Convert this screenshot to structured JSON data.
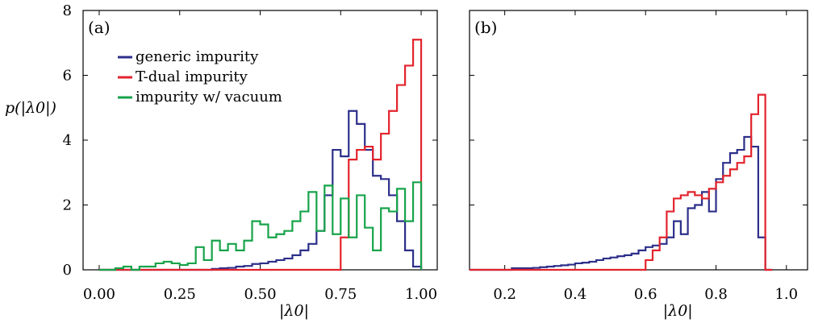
{
  "chart_data": [
    {
      "type": "histogram-step",
      "panel_label": "(a)",
      "xlabel": "|λ0|",
      "ylabel": "p(|λ0|)",
      "xlim": [
        -0.05,
        1.05
      ],
      "ylim": [
        0,
        8
      ],
      "xticks": [
        0.0,
        0.25,
        0.5,
        0.75,
        1.0
      ],
      "xtick_labels": [
        "0.00",
        "0.25",
        "0.50",
        "0.75",
        "1.00"
      ],
      "yticks": [
        0,
        2,
        4,
        6,
        8
      ],
      "ytick_labels": [
        "0",
        "2",
        "4",
        "6",
        "8"
      ],
      "legend_position": "upper-left",
      "series": [
        {
          "name": "generic impurity",
          "color": "#2c2f8a",
          "bin_start": 0.0,
          "bin_width": 0.025,
          "values": [
            0,
            0,
            0,
            0,
            0,
            0,
            0,
            0,
            0,
            0,
            0,
            0,
            0,
            0,
            0.03,
            0.05,
            0.06,
            0.1,
            0.12,
            0.18,
            0.2,
            0.25,
            0.3,
            0.35,
            0.45,
            0.6,
            0.8,
            1.2,
            2.3,
            3.7,
            3.5,
            4.9,
            4.5,
            3.7,
            2.9,
            2.8,
            2.3,
            1.5,
            0.6,
            0.1
          ]
        },
        {
          "name": "T-dual impurity",
          "color": "#e3232c",
          "bin_start": 0.0,
          "bin_width": 0.025,
          "values": [
            0,
            0,
            0,
            0,
            0,
            0,
            0,
            0,
            0,
            0,
            0,
            0,
            0,
            0,
            0,
            0,
            0,
            0,
            0,
            0,
            0,
            0,
            0,
            0,
            0,
            0,
            0,
            0,
            0,
            0,
            1.0,
            3.4,
            3.7,
            3.8,
            3.4,
            4.2,
            4.9,
            5.7,
            6.3,
            7.1
          ]
        },
        {
          "name": "impurity w/ vacuum",
          "color": "#17a34a",
          "bin_start": 0.0,
          "bin_width": 0.025,
          "values": [
            0,
            0,
            0.05,
            0.1,
            0,
            0.1,
            0.1,
            0.2,
            0.25,
            0.2,
            0.15,
            0.2,
            0.7,
            0.3,
            0.9,
            0.6,
            0.8,
            0.6,
            0.9,
            1.5,
            1.4,
            1.0,
            1.1,
            1.2,
            1.5,
            1.8,
            2.4,
            1.2,
            2.6,
            1.1,
            2.2,
            1.0,
            2.3,
            1.3,
            0.6,
            1.9,
            1.8,
            2.5,
            1.5,
            2.7
          ]
        }
      ]
    },
    {
      "type": "histogram-step",
      "panel_label": "(b)",
      "xlabel": "|λ0|",
      "xlim": [
        0.1,
        1.06
      ],
      "ylim": [
        0,
        8
      ],
      "xticks": [
        0.2,
        0.4,
        0.6,
        0.8,
        1.0
      ],
      "xtick_labels": [
        "0.2",
        "0.4",
        "0.6",
        "0.8",
        "1.0"
      ],
      "series": [
        {
          "name": "generic impurity",
          "color": "#2c2f8a",
          "bin_start": 0.1,
          "bin_width": 0.02,
          "values": [
            0,
            0,
            0,
            0,
            0,
            0,
            0.05,
            0.05,
            0.05,
            0.06,
            0.08,
            0.1,
            0.12,
            0.14,
            0.16,
            0.2,
            0.22,
            0.25,
            0.3,
            0.35,
            0.38,
            0.42,
            0.45,
            0.5,
            0.6,
            0.7,
            0.75,
            0.8,
            1.0,
            1.5,
            1.1,
            1.9,
            2.0,
            2.4,
            1.8,
            2.8,
            3.3,
            3.6,
            3.7,
            4.1,
            3.8,
            1.0,
            0
          ]
        },
        {
          "name": "T-dual impurity",
          "color": "#e3232c",
          "bin_start": 0.1,
          "bin_width": 0.02,
          "values": [
            0,
            0,
            0,
            0,
            0,
            0,
            0,
            0,
            0,
            0,
            0,
            0,
            0,
            0,
            0,
            0,
            0,
            0,
            0,
            0,
            0,
            0,
            0,
            0,
            0,
            0.3,
            0.6,
            1.0,
            1.8,
            2.2,
            2.3,
            2.4,
            2.3,
            2.2,
            2.5,
            2.7,
            2.9,
            3.1,
            3.3,
            3.5,
            4.8,
            5.4,
            0
          ]
        }
      ]
    }
  ]
}
